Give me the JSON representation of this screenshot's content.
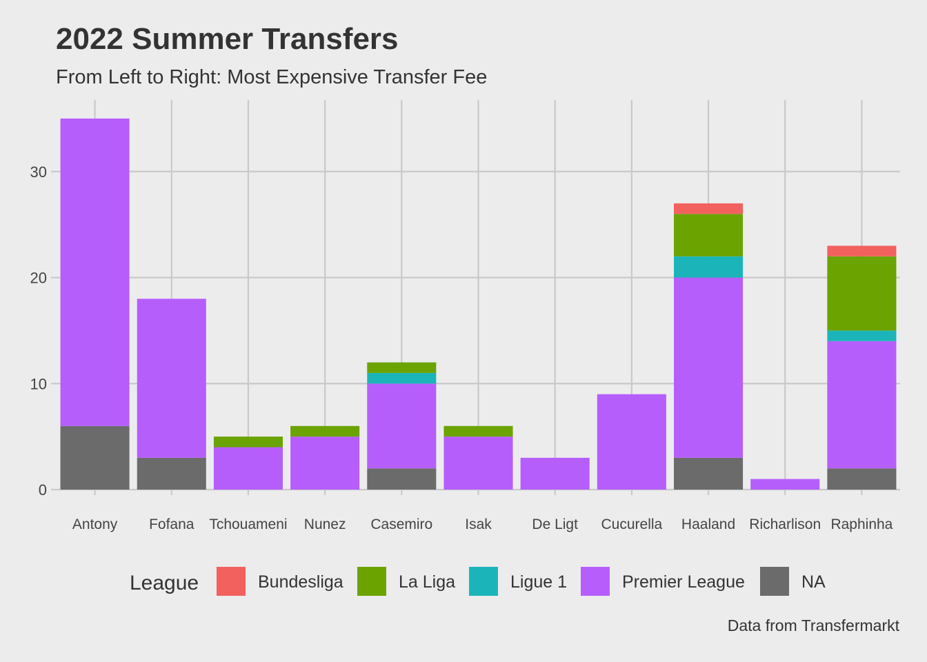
{
  "chart_data": {
    "type": "bar",
    "stacked": true,
    "title": "2022 Summer Transfers",
    "subtitle": "From Left to Right: Most Expensive Transfer Fee",
    "caption": "Data from Transfermarkt",
    "xlabel": "",
    "ylabel": "",
    "ylim": [
      0,
      36.75
    ],
    "yticks": [
      0,
      10,
      20,
      30
    ],
    "grid": true,
    "legend_title": "League",
    "legend_position": "bottom",
    "categories": [
      "Antony",
      "Fofana",
      "Tchouameni",
      "Nunez",
      "Casemiro",
      "Isak",
      "De Ligt",
      "Cucurella",
      "Haaland",
      "Richarlison",
      "Raphinha"
    ],
    "series": [
      {
        "name": "NA",
        "color": "#6b6b6b",
        "values": [
          6,
          3,
          0,
          0,
          2,
          0,
          0,
          0,
          3,
          0,
          2
        ]
      },
      {
        "name": "Premier League",
        "color": "#b65efc",
        "values": [
          29,
          15,
          4,
          5,
          8,
          5,
          3,
          9,
          17,
          1,
          12
        ]
      },
      {
        "name": "Ligue 1",
        "color": "#1bb5b9",
        "values": [
          0,
          0,
          0,
          0,
          1,
          0,
          0,
          0,
          2,
          0,
          1
        ]
      },
      {
        "name": "La Liga",
        "color": "#6ba300",
        "values": [
          0,
          0,
          1,
          1,
          1,
          1,
          0,
          0,
          4,
          0,
          7
        ]
      },
      {
        "name": "Bundesliga",
        "color": "#f2615e",
        "values": [
          0,
          0,
          0,
          0,
          0,
          0,
          0,
          0,
          1,
          0,
          1
        ]
      }
    ],
    "legend_order": [
      "Bundesliga",
      "La Liga",
      "Ligue 1",
      "Premier League",
      "NA"
    ]
  }
}
